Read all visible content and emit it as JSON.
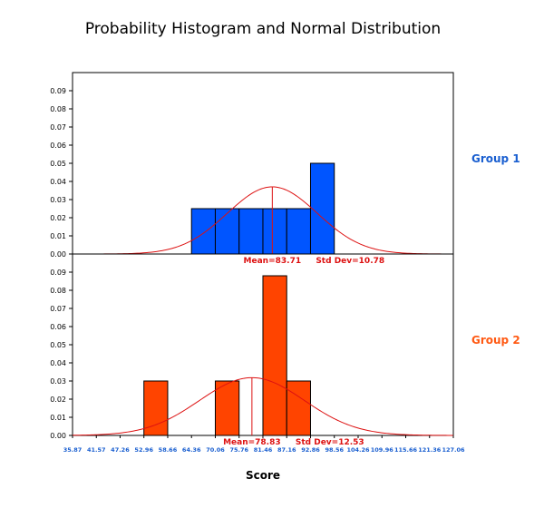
{
  "chart_data": {
    "type": "histogram",
    "title": "Probability Histogram and Normal Distribution",
    "xlabel": "Score",
    "x_ticks": [
      "35.87",
      "41.57",
      "47.26",
      "52.96",
      "58.66",
      "64.36",
      "70.06",
      "75.76",
      "81.46",
      "87.16",
      "92.86",
      "98.56",
      "104.26",
      "109.96",
      "115.66",
      "121.36",
      "127.06"
    ],
    "x_range": [
      35.87,
      127.06
    ],
    "y_ticks": [
      "0.00",
      "0.01",
      "0.02",
      "0.03",
      "0.04",
      "0.05",
      "0.06",
      "0.07",
      "0.08",
      "0.09"
    ],
    "ylim": [
      0,
      0.1
    ],
    "bin_width": 5.7,
    "panels": [
      {
        "name": "Group 1",
        "color": "#0055ff",
        "label_color": "#1a5fd0",
        "bins": [
          {
            "start": 64.36,
            "end": 70.06,
            "value": 0.025
          },
          {
            "start": 70.06,
            "end": 75.76,
            "value": 0.025
          },
          {
            "start": 75.76,
            "end": 81.46,
            "value": 0.025
          },
          {
            "start": 81.46,
            "end": 87.16,
            "value": 0.025
          },
          {
            "start": 87.16,
            "end": 92.86,
            "value": 0.025
          },
          {
            "start": 92.86,
            "end": 98.56,
            "value": 0.05
          }
        ],
        "mean": 83.71,
        "std": 10.78,
        "mean_label": "Mean=83.71",
        "std_label": "Std Dev=10.78"
      },
      {
        "name": "Group 2",
        "color": "#ff4400",
        "label_color": "#ff5a14",
        "bins": [
          {
            "start": 52.96,
            "end": 58.66,
            "value": 0.03
          },
          {
            "start": 70.06,
            "end": 75.76,
            "value": 0.03
          },
          {
            "start": 81.46,
            "end": 87.16,
            "value": 0.088
          },
          {
            "start": 87.16,
            "end": 92.86,
            "value": 0.03
          }
        ],
        "mean": 78.83,
        "std": 12.53,
        "mean_label": "Mean=78.83",
        "std_label": "Std Dev=12.53"
      }
    ],
    "curve_color": "#dd1111",
    "tick_label_color": "#1a5fd0",
    "stat_label_color": "#dd1111"
  }
}
